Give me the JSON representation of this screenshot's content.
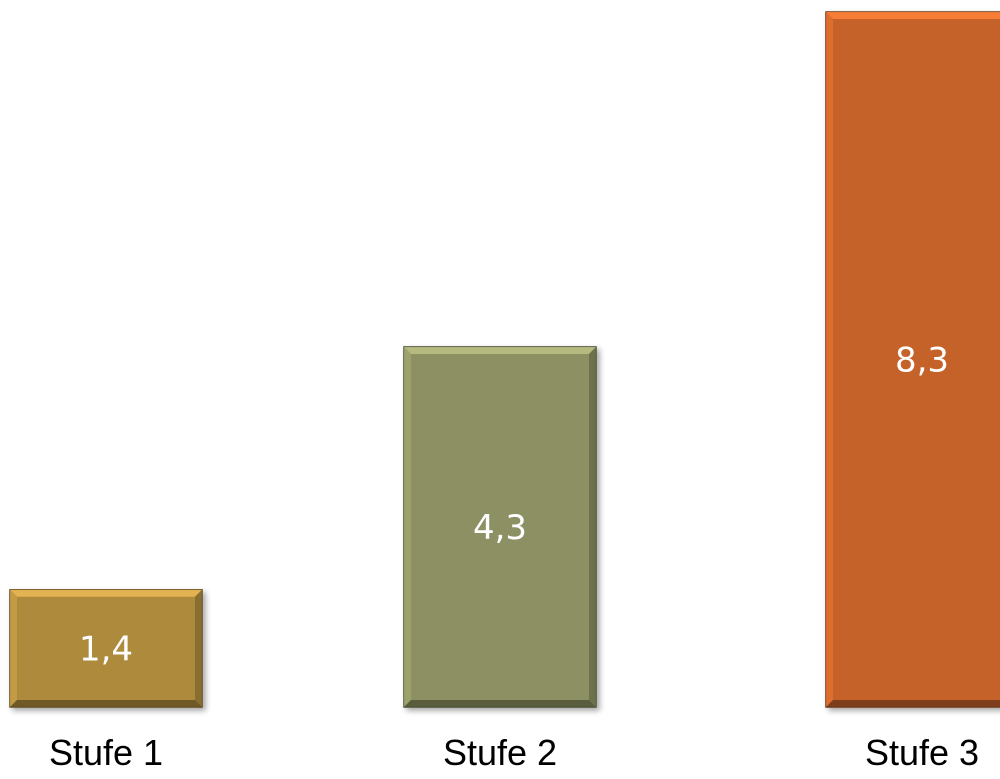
{
  "chart_data": {
    "type": "bar",
    "categories": [
      "Stufe 1",
      "Stufe 2",
      "Stufe 3"
    ],
    "values": [
      1.4,
      4.3,
      8.3
    ],
    "data_labels": [
      "1,4",
      "4,3",
      "8,3"
    ],
    "colors": [
      "#AE8A3E",
      "#8C9062",
      "#C5622A"
    ],
    "title": "",
    "xlabel": "",
    "ylabel": "",
    "ylim": [
      0,
      8.3
    ],
    "grid": false,
    "legend": "none"
  }
}
